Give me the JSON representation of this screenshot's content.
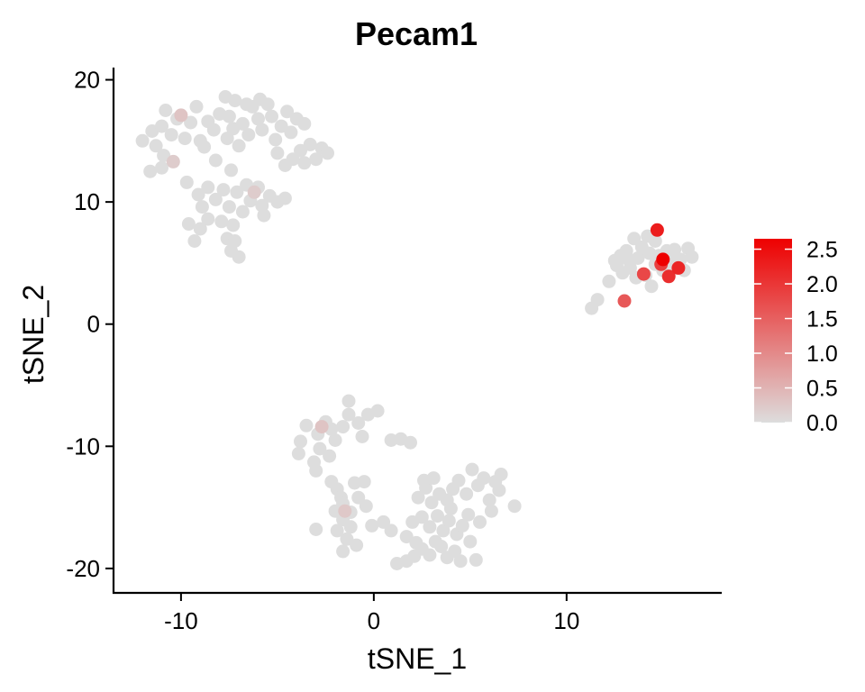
{
  "chart_data": {
    "type": "scatter",
    "title": "Pecam1",
    "xlabel": "tSNE_1",
    "ylabel": "tSNE_2",
    "xlim": [
      -13.5,
      18
    ],
    "ylim": [
      -22,
      21
    ],
    "xticks": [
      -10,
      0,
      10
    ],
    "xtick_labels": [
      "-10",
      "0",
      "10"
    ],
    "yticks": [
      -20,
      -10,
      0,
      10,
      20
    ],
    "ytick_labels": [
      "-20",
      "-10",
      "0",
      "10",
      "20"
    ],
    "grid": false,
    "legend": {
      "position": "right",
      "type": "colorbar",
      "min": 0,
      "max": 2.65,
      "ticks": [
        0,
        0.5,
        1,
        1.5,
        2,
        2.5
      ],
      "tick_labels": [
        "0.0",
        "0.5",
        "1.0",
        "1.5",
        "2.0",
        "2.5"
      ],
      "color_low": "#dddddd",
      "color_high": "#ee0000"
    },
    "points": [
      [
        -12.0,
        15.0,
        0
      ],
      [
        -11.5,
        15.8,
        0
      ],
      [
        -11.0,
        16.2,
        0
      ],
      [
        -11.3,
        14.6,
        0
      ],
      [
        -10.8,
        17.5,
        0
      ],
      [
        -10.5,
        15.5,
        0
      ],
      [
        -10.2,
        16.8,
        0
      ],
      [
        -10.0,
        17.1,
        0.3
      ],
      [
        -9.8,
        15.2,
        0
      ],
      [
        -9.5,
        16.5,
        0
      ],
      [
        -10.9,
        13.8,
        0
      ],
      [
        -10.4,
        13.3,
        0.2
      ],
      [
        -11.0,
        12.8,
        0
      ],
      [
        -11.6,
        12.5,
        0
      ],
      [
        -9.2,
        17.8,
        0
      ],
      [
        -9.0,
        15.0,
        0
      ],
      [
        -8.6,
        16.6,
        0
      ],
      [
        -8.3,
        15.9,
        0
      ],
      [
        -8.0,
        17.2,
        0
      ],
      [
        -7.7,
        18.6,
        0
      ],
      [
        -7.5,
        17.0,
        0
      ],
      [
        -7.3,
        16.0,
        0
      ],
      [
        -7.6,
        15.2,
        0
      ],
      [
        -7.0,
        14.6,
        0
      ],
      [
        -6.8,
        16.4,
        0
      ],
      [
        -6.5,
        15.5,
        0
      ],
      [
        -6.3,
        17.8,
        0
      ],
      [
        -6.0,
        16.8,
        0
      ],
      [
        -5.8,
        15.9,
        0
      ],
      [
        -5.5,
        18.0,
        0
      ],
      [
        -5.3,
        17.0,
        0
      ],
      [
        -5.1,
        15.1,
        0
      ],
      [
        -4.8,
        16.2,
        0
      ],
      [
        -4.5,
        17.4,
        0
      ],
      [
        -4.3,
        15.7,
        0
      ],
      [
        -4.0,
        16.8,
        0
      ],
      [
        -3.6,
        16.4,
        0
      ],
      [
        -3.8,
        14.2,
        0
      ],
      [
        -3.3,
        14.7,
        0
      ],
      [
        -3.0,
        13.5,
        0
      ],
      [
        -2.7,
        14.4,
        0
      ],
      [
        -2.4,
        14.0,
        0
      ],
      [
        -5.0,
        14.0,
        0
      ],
      [
        -4.6,
        13.0,
        0
      ],
      [
        -4.2,
        13.5,
        0
      ],
      [
        -3.6,
        13.2,
        0
      ],
      [
        -8.8,
        14.5,
        0
      ],
      [
        -8.2,
        13.4,
        0
      ],
      [
        -7.4,
        12.6,
        0
      ],
      [
        -5.9,
        18.4,
        0
      ],
      [
        -6.6,
        18.0,
        0
      ],
      [
        -7.2,
        18.3,
        0
      ],
      [
        -9.7,
        11.6,
        0
      ],
      [
        -9.1,
        10.6,
        0
      ],
      [
        -8.6,
        11.2,
        0
      ],
      [
        -8.2,
        10.2,
        0
      ],
      [
        -7.8,
        11.0,
        0
      ],
      [
        -7.5,
        9.6,
        0
      ],
      [
        -7.1,
        10.8,
        0
      ],
      [
        -6.8,
        9.2,
        0
      ],
      [
        -6.4,
        10.1,
        0
      ],
      [
        -6.0,
        11.2,
        0
      ],
      [
        -5.8,
        9.7,
        0
      ],
      [
        -5.4,
        10.5,
        0
      ],
      [
        -5.0,
        10.0,
        0
      ],
      [
        -6.2,
        10.8,
        0.2
      ],
      [
        -4.6,
        10.3,
        0
      ],
      [
        -5.7,
        8.9,
        0
      ],
      [
        -7.9,
        8.4,
        0
      ],
      [
        -7.3,
        8.1,
        0
      ],
      [
        -7.6,
        7.0,
        0
      ],
      [
        -8.6,
        8.6,
        0
      ],
      [
        -9.0,
        7.8,
        0
      ],
      [
        -9.3,
        6.8,
        0
      ],
      [
        -7.2,
        6.8,
        0
      ],
      [
        -7.4,
        6.0,
        0
      ],
      [
        -7.0,
        5.5,
        0
      ],
      [
        -9.6,
        8.2,
        0
      ],
      [
        -6.6,
        11.4,
        0
      ],
      [
        -8.9,
        9.6,
        0
      ],
      [
        11.3,
        1.3,
        0
      ],
      [
        11.6,
        2.0,
        0
      ],
      [
        12.2,
        3.5,
        0
      ],
      [
        12.6,
        4.8,
        0
      ],
      [
        12.8,
        5.6,
        0
      ],
      [
        13.1,
        6.0,
        0
      ],
      [
        13.3,
        4.6,
        0
      ],
      [
        13.5,
        7.0,
        0
      ],
      [
        13.7,
        5.4,
        0
      ],
      [
        13.9,
        6.3,
        0
      ],
      [
        14.1,
        4.0,
        0
      ],
      [
        14.3,
        5.8,
        0
      ],
      [
        14.6,
        4.9,
        0
      ],
      [
        14.8,
        5.6,
        0
      ],
      [
        15.0,
        4.4,
        0
      ],
      [
        15.2,
        6.0,
        0
      ],
      [
        15.4,
        5.1,
        0
      ],
      [
        15.7,
        4.6,
        0
      ],
      [
        15.9,
        5.3,
        0
      ],
      [
        16.1,
        4.4,
        0
      ],
      [
        16.3,
        6.2,
        0
      ],
      [
        16.5,
        5.5,
        0
      ],
      [
        12.9,
        4.2,
        0
      ],
      [
        13.6,
        3.8,
        0
      ],
      [
        14.4,
        3.1,
        0
      ],
      [
        14.6,
        6.8,
        0
      ],
      [
        14.2,
        7.2,
        0
      ],
      [
        12.5,
        5.2,
        0
      ],
      [
        13.2,
        5.3,
        0
      ],
      [
        15.6,
        6.1,
        0
      ],
      [
        14.7,
        7.7,
        2.3
      ],
      [
        13.0,
        1.9,
        1.6
      ],
      [
        14.0,
        4.1,
        1.8
      ],
      [
        15.3,
        3.9,
        2.1
      ],
      [
        15.8,
        4.6,
        2.2
      ],
      [
        15.0,
        5.3,
        2.65
      ],
      [
        14.9,
        4.9,
        1.9
      ],
      [
        -3.5,
        -8.3,
        0
      ],
      [
        -2.9,
        -9.0,
        0
      ],
      [
        -2.5,
        -8.0,
        0
      ],
      [
        -2.2,
        -8.6,
        0
      ],
      [
        -2.0,
        -9.5,
        0
      ],
      [
        -1.6,
        -8.4,
        0
      ],
      [
        -1.3,
        -6.3,
        0
      ],
      [
        -1.3,
        -7.4,
        0
      ],
      [
        -0.8,
        -8.1,
        0
      ],
      [
        -0.3,
        -7.4,
        0
      ],
      [
        -0.6,
        -9.2,
        0
      ],
      [
        -3.8,
        -9.6,
        0
      ],
      [
        -3.9,
        -10.6,
        0
      ],
      [
        -3.1,
        -11.3,
        0
      ],
      [
        -2.8,
        -10.2,
        0
      ],
      [
        -2.3,
        -10.8,
        0
      ],
      [
        -3.0,
        -12.0,
        0
      ],
      [
        -2.7,
        -8.4,
        0.3
      ],
      [
        0.2,
        -7.1,
        0
      ],
      [
        0.9,
        -9.5,
        0
      ],
      [
        1.4,
        -9.4,
        0
      ],
      [
        1.9,
        -9.7,
        0
      ],
      [
        -1.9,
        -13.5,
        0
      ],
      [
        -1.7,
        -14.2,
        0
      ],
      [
        -2.0,
        -15.3,
        0
      ],
      [
        -1.6,
        -16.0,
        0
      ],
      [
        -1.2,
        -15.4,
        0
      ],
      [
        -0.8,
        -14.2,
        0
      ],
      [
        -0.4,
        -14.9,
        0
      ],
      [
        -1.0,
        -13.0,
        0
      ],
      [
        -1.9,
        -16.9,
        0
      ],
      [
        -1.4,
        -17.6,
        0
      ],
      [
        -0.9,
        -18.1,
        0
      ],
      [
        -1.6,
        -18.6,
        0
      ],
      [
        -3.0,
        -16.8,
        0
      ],
      [
        -2.2,
        -12.9,
        0
      ],
      [
        -0.5,
        -12.9,
        0
      ],
      [
        -1.5,
        -15.3,
        0.25
      ],
      [
        0.5,
        -16.2,
        0
      ],
      [
        -0.1,
        -16.5,
        0
      ],
      [
        -1.2,
        -16.6,
        0
      ],
      [
        -1.6,
        -14.7,
        0
      ],
      [
        1.2,
        -19.6,
        0
      ],
      [
        1.7,
        -19.4,
        0
      ],
      [
        2.1,
        -19.0,
        0
      ],
      [
        2.5,
        -18.4,
        0
      ],
      [
        2.9,
        -18.9,
        0
      ],
      [
        3.2,
        -17.8,
        0
      ],
      [
        3.5,
        -18.2,
        0
      ],
      [
        3.8,
        -19.1,
        0
      ],
      [
        4.2,
        -18.6,
        0
      ],
      [
        4.5,
        -19.4,
        0
      ],
      [
        5.3,
        -19.3,
        0
      ],
      [
        2.0,
        -16.2,
        0
      ],
      [
        2.5,
        -15.8,
        0
      ],
      [
        2.9,
        -16.6,
        0
      ],
      [
        3.3,
        -15.7,
        0
      ],
      [
        3.6,
        -16.9,
        0
      ],
      [
        3.9,
        -16.1,
        0
      ],
      [
        4.3,
        -17.2,
        0
      ],
      [
        4.6,
        -16.5,
        0
      ],
      [
        5.0,
        -17.8,
        0
      ],
      [
        1.7,
        -17.4,
        0
      ],
      [
        2.2,
        -17.9,
        0
      ],
      [
        2.3,
        -14.2,
        0
      ],
      [
        2.7,
        -13.4,
        0
      ],
      [
        3.0,
        -14.6,
        0
      ],
      [
        3.4,
        -13.9,
        0
      ],
      [
        3.8,
        -14.4,
        0
      ],
      [
        4.1,
        -13.5,
        0
      ],
      [
        4.4,
        -12.8,
        0
      ],
      [
        4.8,
        -13.9,
        0
      ],
      [
        5.1,
        -11.9,
        0
      ],
      [
        5.4,
        -13.2,
        0
      ],
      [
        5.7,
        -12.6,
        0
      ],
      [
        6.0,
        -14.4,
        0
      ],
      [
        6.3,
        -12.9,
        0
      ],
      [
        6.6,
        -12.3,
        0
      ],
      [
        6.1,
        -15.3,
        0
      ],
      [
        7.3,
        -14.9,
        0
      ],
      [
        6.5,
        -13.6,
        0
      ],
      [
        4.0,
        -15.1,
        0
      ],
      [
        2.6,
        -12.8,
        0
      ],
      [
        3.1,
        -12.6,
        0
      ],
      [
        5.5,
        -16.2,
        0
      ],
      [
        0.9,
        -16.9,
        0
      ],
      [
        4.9,
        -15.6,
        0
      ]
    ]
  }
}
